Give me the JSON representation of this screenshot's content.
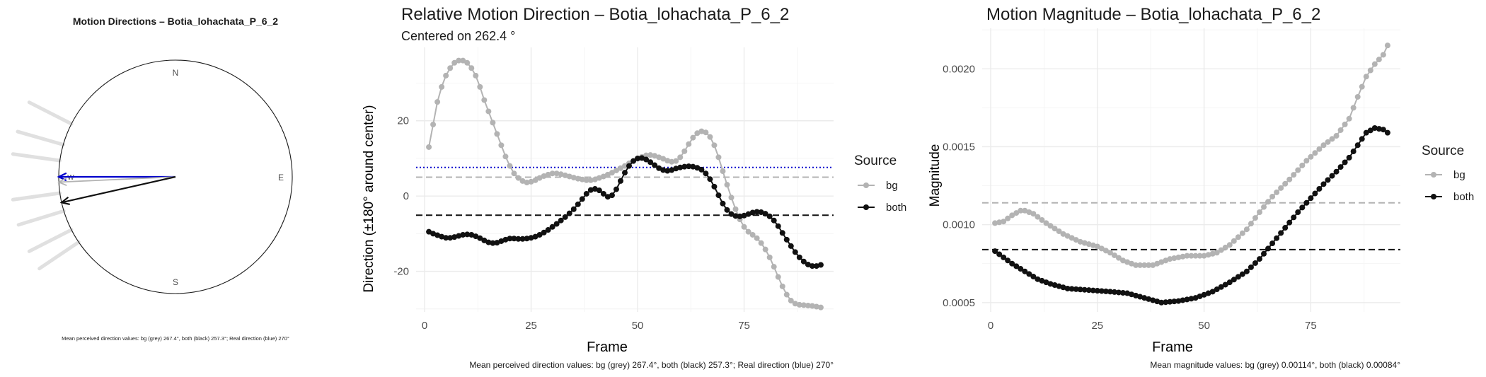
{
  "colors": {
    "bg": "#b3b3b3",
    "both": "#111111",
    "real": "#0000cc",
    "rose_ray": "#e0e0e0"
  },
  "chart_data": [
    {
      "type": "compass",
      "title": "Motion Directions – Botia_lohachata_P_6_2",
      "cardinals": [
        "N",
        "E",
        "S",
        "W"
      ],
      "rose_bearings_deg": [
        297,
        286,
        278,
        262,
        253,
        243,
        236
      ],
      "arrows": [
        {
          "name": "real",
          "bearing_deg": 270,
          "color": "blue"
        },
        {
          "name": "bg",
          "bearing_deg": 267.4,
          "color": "grey"
        },
        {
          "name": "both",
          "bearing_deg": 257.3,
          "color": "black"
        }
      ],
      "caption": "Mean perceived direction values: bg (grey) 267.4°, both (black) 257.3°; Real direction (blue) 270°"
    },
    {
      "type": "line",
      "title": "Relative Motion Direction – Botia_lohachata_P_6_2",
      "subtitle": "Centered on  262.4 °",
      "xlabel": "Frame",
      "ylabel": "Direction (±180° around center)",
      "xlim": [
        -2,
        96
      ],
      "ylim": [
        -30.8,
        39.5
      ],
      "xticks": [
        0,
        25,
        50,
        75
      ],
      "yticks": [
        -20,
        0,
        20
      ],
      "legend_title": "Source",
      "series": [
        {
          "name": "bg",
          "knots": [
            [
              1,
              13
            ],
            [
              2,
              19
            ],
            [
              3,
              25
            ],
            [
              4,
              29
            ],
            [
              5,
              32
            ],
            [
              6,
              34
            ],
            [
              7,
              35.4
            ],
            [
              8,
              36
            ],
            [
              9,
              36
            ],
            [
              10,
              35.4
            ],
            [
              11,
              34
            ],
            [
              12,
              32
            ],
            [
              13,
              29
            ],
            [
              14,
              25.5
            ],
            [
              15,
              22.5
            ],
            [
              16,
              19.5
            ],
            [
              17,
              16.5
            ],
            [
              18,
              13.5
            ],
            [
              19,
              10.5
            ],
            [
              20,
              8
            ],
            [
              21,
              6
            ],
            [
              22,
              4.8
            ],
            [
              23,
              4
            ],
            [
              24,
              3.6
            ],
            [
              25,
              3.8
            ],
            [
              26,
              4.2
            ],
            [
              27,
              4.8
            ],
            [
              28,
              5.3
            ],
            [
              29,
              5.7
            ],
            [
              30,
              6
            ],
            [
              31,
              6
            ],
            [
              32,
              5.8
            ],
            [
              33,
              5.5
            ],
            [
              34,
              5.2
            ],
            [
              35,
              4.9
            ],
            [
              36,
              4.6
            ],
            [
              37,
              4.4
            ],
            [
              38,
              4.2
            ],
            [
              39,
              4.2
            ],
            [
              40,
              4.4
            ],
            [
              41,
              4.8
            ],
            [
              42,
              5.2
            ],
            [
              43,
              5.7
            ],
            [
              44,
              6.2
            ],
            [
              45,
              6.8
            ],
            [
              46,
              7.4
            ],
            [
              47,
              8
            ],
            [
              48,
              8.7
            ],
            [
              49,
              9.3
            ],
            [
              50,
              9.9
            ],
            [
              51,
              10.4
            ],
            [
              52,
              10.8
            ],
            [
              53,
              10.9
            ],
            [
              54,
              10.7
            ],
            [
              55,
              10.3
            ],
            [
              56,
              9.9
            ],
            [
              57,
              9.4
            ],
            [
              58,
              9.1
            ],
            [
              59,
              9.3
            ],
            [
              60,
              10.3
            ],
            [
              61,
              11.9
            ],
            [
              62,
              13.8
            ],
            [
              63,
              15.5
            ],
            [
              64,
              16.7
            ],
            [
              65,
              17.2
            ],
            [
              66,
              16.9
            ],
            [
              67,
              15.7
            ],
            [
              68,
              13.5
            ],
            [
              69,
              10.3
            ],
            [
              70,
              6.6
            ],
            [
              71,
              3
            ],
            [
              72,
              -0.4
            ],
            [
              73,
              -3.5
            ],
            [
              74,
              -6.2
            ],
            [
              75,
              -8.2
            ],
            [
              76,
              -9.5
            ],
            [
              77,
              -10.3
            ],
            [
              78,
              -11.2
            ],
            [
              79,
              -12.5
            ],
            [
              80,
              -14.2
            ],
            [
              81,
              -16.3
            ],
            [
              82,
              -18.8
            ],
            [
              83,
              -21.5
            ],
            [
              84,
              -24
            ],
            [
              85,
              -26.2
            ],
            [
              86,
              -27.8
            ],
            [
              87,
              -28.6
            ],
            [
              88,
              -28.9
            ],
            [
              89,
              -29
            ],
            [
              90,
              -29.1
            ],
            [
              91,
              -29.2
            ],
            [
              92,
              -29.4
            ],
            [
              93,
              -29.6
            ]
          ]
        },
        {
          "name": "both",
          "knots": [
            [
              1,
              -9.5
            ],
            [
              2,
              -10
            ],
            [
              3,
              -10.4
            ],
            [
              4,
              -10.8
            ],
            [
              5,
              -11.1
            ],
            [
              6,
              -11.1
            ],
            [
              7,
              -10.9
            ],
            [
              8,
              -10.6
            ],
            [
              9,
              -10.3
            ],
            [
              10,
              -10.2
            ],
            [
              11,
              -10.3
            ],
            [
              12,
              -10.7
            ],
            [
              13,
              -11.2
            ],
            [
              14,
              -11.8
            ],
            [
              15,
              -12.3
            ],
            [
              16,
              -12.5
            ],
            [
              17,
              -12.4
            ],
            [
              18,
              -12
            ],
            [
              19,
              -11.6
            ],
            [
              20,
              -11.3
            ],
            [
              21,
              -11.3
            ],
            [
              22,
              -11.4
            ],
            [
              23,
              -11.4
            ],
            [
              24,
              -11.3
            ],
            [
              25,
              -11.1
            ],
            [
              26,
              -10.8
            ],
            [
              27,
              -10.3
            ],
            [
              28,
              -9.7
            ],
            [
              29,
              -9
            ],
            [
              30,
              -8.2
            ],
            [
              31,
              -7.4
            ],
            [
              32,
              -6.5
            ],
            [
              33,
              -5.6
            ],
            [
              34,
              -4.6
            ],
            [
              35,
              -3.5
            ],
            [
              36,
              -2.2
            ],
            [
              37,
              -0.8
            ],
            [
              38,
              0.6
            ],
            [
              39,
              1.6
            ],
            [
              40,
              1.9
            ],
            [
              41,
              1.5
            ],
            [
              42,
              0.6
            ],
            [
              43,
              -0.2
            ],
            [
              44,
              0.2
            ],
            [
              45,
              1.8
            ],
            [
              46,
              4
            ],
            [
              47,
              6.2
            ],
            [
              48,
              8
            ],
            [
              49,
              9.3
            ],
            [
              50,
              10
            ],
            [
              51,
              10.1
            ],
            [
              52,
              9.7
            ],
            [
              53,
              9
            ],
            [
              54,
              8.2
            ],
            [
              55,
              7.4
            ],
            [
              56,
              6.9
            ],
            [
              57,
              6.7
            ],
            [
              58,
              6.9
            ],
            [
              59,
              7.3
            ],
            [
              60,
              7.6
            ],
            [
              61,
              7.8
            ],
            [
              62,
              7.9
            ],
            [
              63,
              7.8
            ],
            [
              64,
              7.5
            ],
            [
              65,
              7
            ],
            [
              66,
              6
            ],
            [
              67,
              4.5
            ],
            [
              68,
              2.5
            ],
            [
              69,
              0.2
            ],
            [
              70,
              -2
            ],
            [
              71,
              -3.7
            ],
            [
              72,
              -4.8
            ],
            [
              73,
              -5.3
            ],
            [
              74,
              -5.4
            ],
            [
              75,
              -5.2
            ],
            [
              76,
              -4.8
            ],
            [
              77,
              -4.4
            ],
            [
              78,
              -4.2
            ],
            [
              79,
              -4.3
            ],
            [
              80,
              -4.7
            ],
            [
              81,
              -5.4
            ],
            [
              82,
              -6.5
            ],
            [
              83,
              -8
            ],
            [
              84,
              -9.8
            ],
            [
              85,
              -11.6
            ],
            [
              86,
              -13.3
            ],
            [
              87,
              -14.9
            ],
            [
              88,
              -16.3
            ],
            [
              89,
              -17.4
            ],
            [
              90,
              -18.2
            ],
            [
              91,
              -18.6
            ],
            [
              92,
              -18.6
            ],
            [
              93,
              -18.3
            ]
          ]
        }
      ],
      "hlines": [
        {
          "value": 7.6,
          "color": "blue",
          "style": "dotted"
        },
        {
          "value": 5,
          "color": "grey",
          "style": "dashed"
        },
        {
          "value": -5.1,
          "color": "black",
          "style": "dashed"
        }
      ],
      "caption": "Mean perceived direction values: bg (grey) 267.4°, both (black) 257.3°; Real direction (blue) 270°"
    },
    {
      "type": "line",
      "title": "Motion Magnitude – Botia_lohachata_P_6_2",
      "xlabel": "Frame",
      "ylabel": "Magnitude",
      "xlim": [
        -2,
        96
      ],
      "ylim": [
        0.00044,
        0.00226
      ],
      "xticks": [
        0,
        25,
        50,
        75
      ],
      "yticks": [
        0.0005,
        0.001,
        0.0015,
        0.002
      ],
      "ytick_labels": [
        "0.0005",
        "0.0010",
        "0.0015",
        "0.0020"
      ],
      "legend_title": "Source",
      "series": [
        {
          "name": "bg",
          "knots": [
            [
              1,
              0.00101
            ],
            [
              3,
              0.00102
            ],
            [
              5,
              0.00106
            ],
            [
              7,
              0.00109
            ],
            [
              8,
              0.00109
            ],
            [
              10,
              0.00107
            ],
            [
              13,
              0.00101
            ],
            [
              17,
              0.00094
            ],
            [
              21,
              0.00089
            ],
            [
              25,
              0.00086
            ],
            [
              28,
              0.00082
            ],
            [
              31,
              0.00077
            ],
            [
              34,
              0.00074
            ],
            [
              38,
              0.00074
            ],
            [
              42,
              0.00078
            ],
            [
              46,
              0.0008
            ],
            [
              50,
              0.0008
            ],
            [
              53,
              0.00082
            ],
            [
              56,
              0.00087
            ],
            [
              60,
              0.00097
            ],
            [
              63,
              0.00108
            ],
            [
              66,
              0.00118
            ],
            [
              70,
              0.00129
            ],
            [
              74,
              0.00141
            ],
            [
              78,
              0.00151
            ],
            [
              81,
              0.00157
            ],
            [
              84,
              0.00168
            ],
            [
              86,
              0.00182
            ],
            [
              88,
              0.00195
            ],
            [
              90,
              0.00203
            ],
            [
              92,
              0.00209
            ],
            [
              93,
              0.00215
            ]
          ]
        },
        {
          "name": "both",
          "knots": [
            [
              1,
              0.00083
            ],
            [
              3,
              0.00079
            ],
            [
              5,
              0.00075
            ],
            [
              8,
              0.0007
            ],
            [
              11,
              0.00065
            ],
            [
              14,
              0.00062
            ],
            [
              18,
              0.00059
            ],
            [
              23,
              0.00058
            ],
            [
              28,
              0.00057
            ],
            [
              32,
              0.00056
            ],
            [
              36,
              0.00053
            ],
            [
              40,
              0.0005
            ],
            [
              44,
              0.00051
            ],
            [
              48,
              0.00053
            ],
            [
              52,
              0.00057
            ],
            [
              56,
              0.00063
            ],
            [
              60,
              0.0007
            ],
            [
              63,
              0.00078
            ],
            [
              66,
              0.00088
            ],
            [
              69,
              0.00098
            ],
            [
              72,
              0.00108
            ],
            [
              75,
              0.00117
            ],
            [
              78,
              0.00126
            ],
            [
              81,
              0.00134
            ],
            [
              84,
              0.00143
            ],
            [
              86,
              0.00151
            ],
            [
              88,
              0.00159
            ],
            [
              90,
              0.00162
            ],
            [
              92,
              0.00161
            ],
            [
              93,
              0.00159
            ]
          ]
        }
      ],
      "hlines": [
        {
          "value": 0.00114,
          "color": "grey",
          "style": "dashed"
        },
        {
          "value": 0.00084,
          "color": "black",
          "style": "dashed"
        }
      ],
      "caption": "Mean magnitude values: bg (grey) 0.00114°, both (black) 0.00084°"
    }
  ]
}
